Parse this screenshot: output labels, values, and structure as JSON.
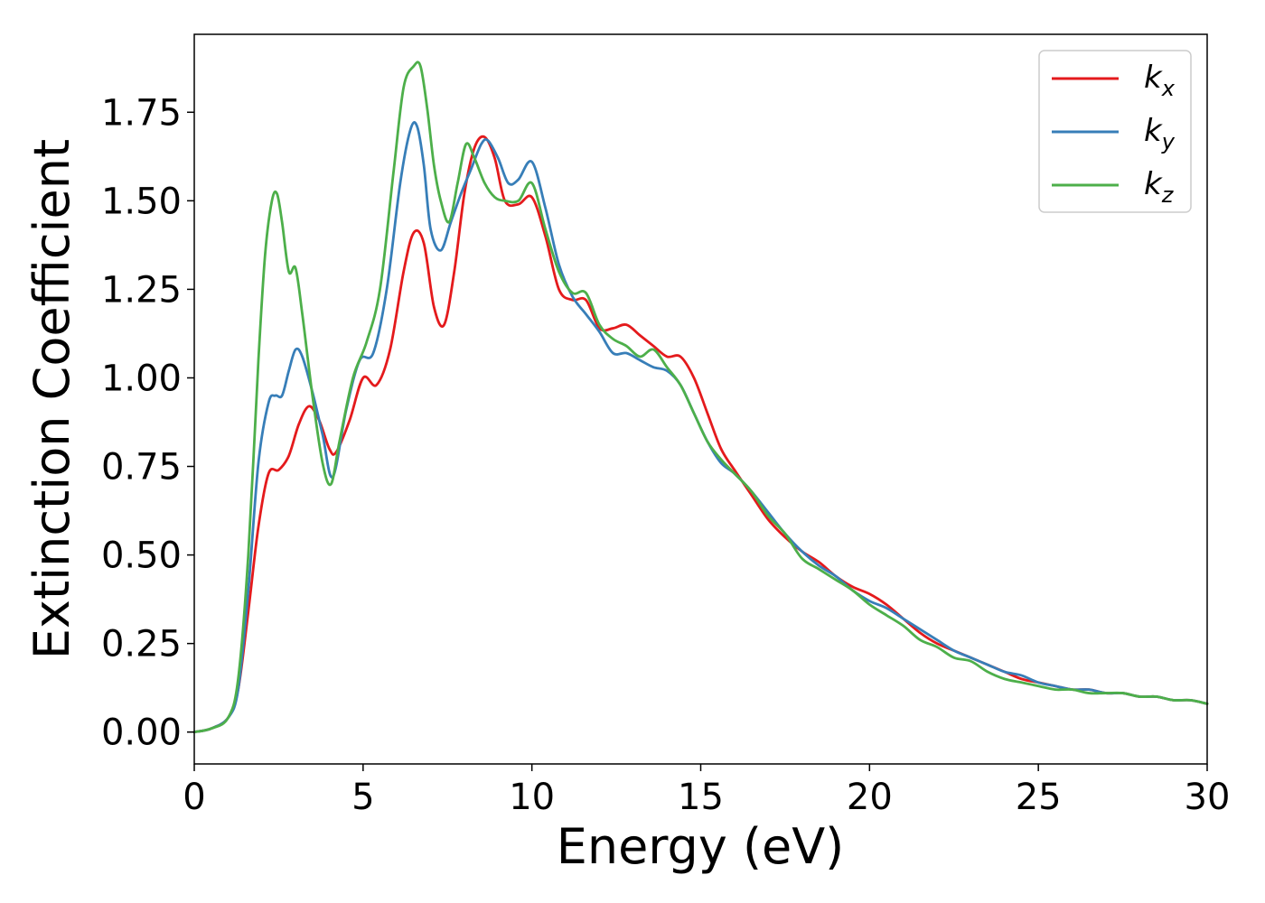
{
  "chart_data": {
    "type": "line",
    "xlabel": "Energy (eV)",
    "ylabel": "Extinction Coefficient",
    "xlim": [
      0,
      30
    ],
    "ylim": [
      -0.09,
      1.97
    ],
    "xticks": [
      0,
      5,
      10,
      15,
      20,
      25,
      30
    ],
    "yticks": [
      0.0,
      0.25,
      0.5,
      0.75,
      1.0,
      1.25,
      1.5,
      1.75
    ],
    "xtick_labels": [
      "0",
      "5",
      "10",
      "15",
      "20",
      "25",
      "30"
    ],
    "ytick_labels": [
      "0.00",
      "0.25",
      "0.50",
      "0.75",
      "1.00",
      "1.25",
      "1.50",
      "1.75"
    ],
    "grid": false,
    "legend_position": "top-right",
    "series": [
      {
        "name": "k",
        "subscript": "x",
        "color": "#e41a1c",
        "x": [
          0,
          0.5,
          1,
          1.3,
          1.6,
          1.9,
          2.2,
          2.5,
          2.8,
          3.1,
          3.4,
          3.7,
          4.0,
          4.2,
          4.6,
          5.0,
          5.4,
          5.8,
          6.2,
          6.5,
          6.8,
          7.1,
          7.4,
          7.7,
          8.0,
          8.3,
          8.6,
          8.9,
          9.2,
          9.6,
          10.0,
          10.4,
          10.8,
          11.2,
          11.6,
          12.0,
          12.4,
          12.8,
          13.2,
          13.6,
          14.0,
          14.4,
          14.8,
          15.2,
          15.6,
          16.0,
          16.5,
          17.0,
          17.5,
          18.0,
          18.5,
          19.0,
          19.5,
          20.0,
          20.5,
          21.0,
          21.5,
          22.0,
          22.5,
          23.0,
          23.5,
          24.0,
          24.5,
          25.0,
          25.5,
          26.0,
          26.5,
          27.0,
          27.5,
          28.0,
          28.5,
          29.0,
          29.5,
          30.0
        ],
        "y": [
          0.0,
          0.01,
          0.04,
          0.12,
          0.34,
          0.58,
          0.73,
          0.74,
          0.78,
          0.87,
          0.92,
          0.88,
          0.8,
          0.79,
          0.88,
          1.0,
          0.98,
          1.08,
          1.3,
          1.41,
          1.38,
          1.2,
          1.15,
          1.3,
          1.52,
          1.65,
          1.68,
          1.62,
          1.5,
          1.49,
          1.51,
          1.4,
          1.25,
          1.22,
          1.22,
          1.14,
          1.14,
          1.15,
          1.12,
          1.09,
          1.06,
          1.06,
          1.0,
          0.9,
          0.8,
          0.74,
          0.67,
          0.6,
          0.55,
          0.51,
          0.48,
          0.44,
          0.41,
          0.39,
          0.36,
          0.32,
          0.28,
          0.25,
          0.23,
          0.21,
          0.19,
          0.17,
          0.15,
          0.14,
          0.13,
          0.12,
          0.12,
          0.11,
          0.11,
          0.1,
          0.1,
          0.09,
          0.09,
          0.08
        ]
      },
      {
        "name": "k",
        "subscript": "y",
        "color": "#377eb8",
        "x": [
          0,
          0.5,
          1,
          1.3,
          1.6,
          1.9,
          2.2,
          2.4,
          2.6,
          2.8,
          3.0,
          3.2,
          3.5,
          3.8,
          4.1,
          4.5,
          4.9,
          5.3,
          5.7,
          6.1,
          6.4,
          6.6,
          6.8,
          7.0,
          7.3,
          7.6,
          7.9,
          8.2,
          8.5,
          8.7,
          9.0,
          9.3,
          9.6,
          10.0,
          10.4,
          10.8,
          11.2,
          11.6,
          12.0,
          12.4,
          12.8,
          13.2,
          13.6,
          14.0,
          14.4,
          14.8,
          15.2,
          15.6,
          16.0,
          16.5,
          17.0,
          17.5,
          18.0,
          18.5,
          19.0,
          19.5,
          20.0,
          20.5,
          21.0,
          21.5,
          22.0,
          22.5,
          23.0,
          23.5,
          24.0,
          24.5,
          25.0,
          25.5,
          26.0,
          26.5,
          27.0,
          27.5,
          28.0,
          28.5,
          29.0,
          29.5,
          30.0
        ],
        "y": [
          0.0,
          0.01,
          0.04,
          0.12,
          0.4,
          0.76,
          0.93,
          0.95,
          0.95,
          1.02,
          1.08,
          1.06,
          0.96,
          0.84,
          0.72,
          0.91,
          1.05,
          1.07,
          1.25,
          1.55,
          1.7,
          1.71,
          1.6,
          1.42,
          1.36,
          1.44,
          1.52,
          1.59,
          1.66,
          1.67,
          1.62,
          1.55,
          1.56,
          1.61,
          1.48,
          1.32,
          1.23,
          1.18,
          1.13,
          1.07,
          1.07,
          1.05,
          1.03,
          1.02,
          0.98,
          0.9,
          0.82,
          0.76,
          0.73,
          0.68,
          0.62,
          0.56,
          0.51,
          0.47,
          0.44,
          0.4,
          0.37,
          0.35,
          0.32,
          0.29,
          0.26,
          0.23,
          0.21,
          0.19,
          0.17,
          0.16,
          0.14,
          0.13,
          0.12,
          0.12,
          0.11,
          0.11,
          0.1,
          0.1,
          0.09,
          0.09,
          0.08
        ]
      },
      {
        "name": "k",
        "subscript": "z",
        "color": "#4daf4a",
        "x": [
          0,
          0.5,
          1,
          1.3,
          1.6,
          1.9,
          2.1,
          2.3,
          2.45,
          2.6,
          2.8,
          3.0,
          3.2,
          3.5,
          3.8,
          4.05,
          4.3,
          4.7,
          5.1,
          5.5,
          5.9,
          6.2,
          6.5,
          6.7,
          6.9,
          7.1,
          7.3,
          7.55,
          7.8,
          8.05,
          8.3,
          8.6,
          8.9,
          9.2,
          9.6,
          10.0,
          10.4,
          10.8,
          11.2,
          11.6,
          12.0,
          12.4,
          12.8,
          13.2,
          13.6,
          14.0,
          14.4,
          14.8,
          15.2,
          15.6,
          16.0,
          16.5,
          17.0,
          17.5,
          18.0,
          18.5,
          19.0,
          19.5,
          20.0,
          20.5,
          21.0,
          21.5,
          22.0,
          22.5,
          23.0,
          23.5,
          24.0,
          24.5,
          25.0,
          25.5,
          26.0,
          26.5,
          27.0,
          27.5,
          28.0,
          28.5,
          29.0,
          29.5,
          30.0
        ],
        "y": [
          0.0,
          0.01,
          0.04,
          0.15,
          0.5,
          1.05,
          1.35,
          1.5,
          1.52,
          1.44,
          1.3,
          1.31,
          1.18,
          0.95,
          0.76,
          0.7,
          0.82,
          1.0,
          1.1,
          1.25,
          1.58,
          1.82,
          1.88,
          1.88,
          1.76,
          1.6,
          1.5,
          1.44,
          1.55,
          1.66,
          1.62,
          1.55,
          1.51,
          1.5,
          1.5,
          1.55,
          1.42,
          1.3,
          1.24,
          1.24,
          1.15,
          1.11,
          1.09,
          1.06,
          1.08,
          1.03,
          0.98,
          0.9,
          0.82,
          0.77,
          0.73,
          0.68,
          0.61,
          0.56,
          0.49,
          0.46,
          0.43,
          0.4,
          0.36,
          0.33,
          0.3,
          0.26,
          0.24,
          0.21,
          0.2,
          0.17,
          0.15,
          0.14,
          0.13,
          0.12,
          0.12,
          0.11,
          0.11,
          0.11,
          0.1,
          0.1,
          0.09,
          0.09,
          0.08
        ]
      }
    ]
  }
}
